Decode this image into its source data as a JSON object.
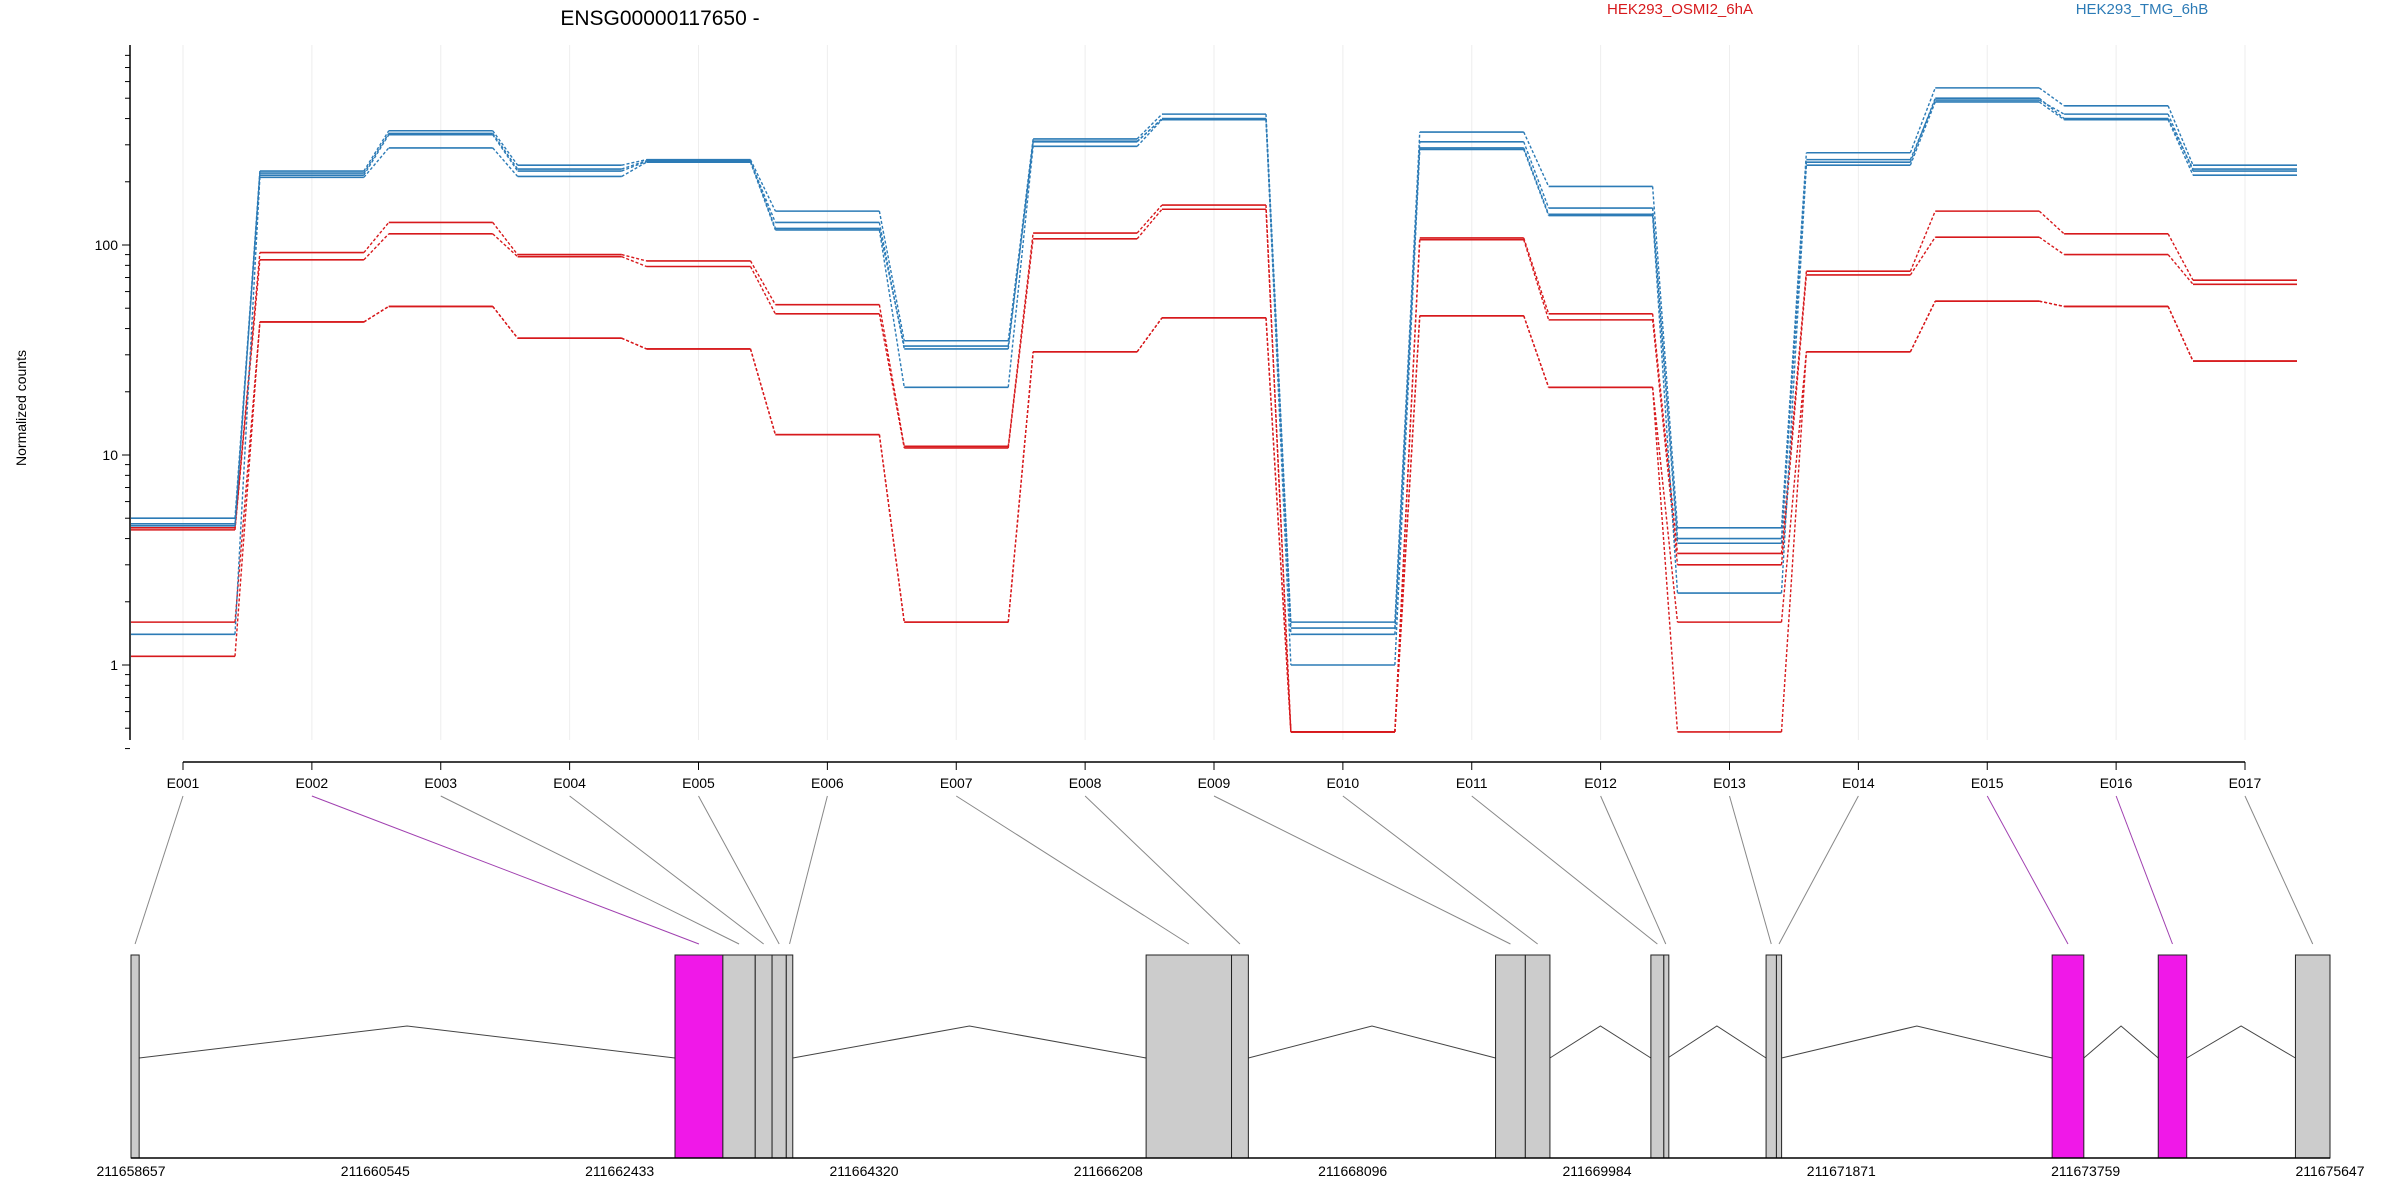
{
  "chart_data": {
    "type": "line",
    "title": "ENSG00000117650 -",
    "ylabel": "Normalized counts",
    "y_scale": "log10",
    "ylim": [
      0.4,
      850
    ],
    "y_ticks": [
      {
        "value": 1,
        "label": "1"
      },
      {
        "value": 10,
        "label": "10"
      },
      {
        "value": 100,
        "label": "100"
      }
    ],
    "categories": [
      "E001",
      "E002",
      "E003",
      "E004",
      "E005",
      "E006",
      "E007",
      "E008",
      "E009",
      "E010",
      "E011",
      "E012",
      "E013",
      "E014",
      "E015",
      "E016",
      "E017"
    ],
    "legend": [
      {
        "label": "HEK293_OSMI2_6hA",
        "color": "#d7191c"
      },
      {
        "label": "HEK293_TMG_6hB",
        "color": "#2c7bb6"
      }
    ],
    "series": [
      {
        "group": "HEK293_OSMI2_6hA",
        "color": "#d7191c",
        "values": [
          4.5,
          92,
          128,
          90,
          84,
          52,
          11,
          114,
          155,
          0.48,
          108,
          47,
          3.4,
          75,
          145,
          113,
          68
        ]
      },
      {
        "group": "HEK293_OSMI2_6hA",
        "color": "#d7191c",
        "values": [
          4.4,
          85,
          113,
          88,
          79,
          47,
          10.8,
          107,
          148,
          0.48,
          106,
          44,
          3.0,
          72,
          109,
          90,
          65
        ]
      },
      {
        "group": "HEK293_OSMI2_6hA",
        "color": "#d7191c",
        "values": [
          1.6,
          43,
          51,
          36,
          32,
          12.5,
          1.6,
          31,
          45,
          0.48,
          46,
          21,
          1.6,
          31,
          54,
          51,
          28
        ]
      },
      {
        "group": "HEK293_OSMI2_6hA",
        "color": "#d7191c",
        "values": [
          1.1,
          43,
          51,
          36,
          32,
          12.5,
          1.6,
          31,
          45,
          0.48,
          46,
          21,
          0.48,
          31,
          54,
          51,
          28
        ]
      },
      {
        "group": "HEK293_TMG_6hB",
        "color": "#2c7bb6",
        "values": [
          5.0,
          225,
          350,
          240,
          255,
          145,
          35,
          320,
          420,
          1.6,
          345,
          190,
          4.5,
          275,
          560,
          460,
          240
        ]
      },
      {
        "group": "HEK293_TMG_6hB",
        "color": "#2c7bb6",
        "values": [
          4.7,
          215,
          335,
          225,
          250,
          128,
          32,
          310,
          400,
          1.5,
          310,
          150,
          4.0,
          255,
          490,
          420,
          225
        ]
      },
      {
        "group": "HEK293_TMG_6hB",
        "color": "#2c7bb6",
        "values": [
          1.4,
          210,
          290,
          212,
          248,
          118,
          21,
          295,
          395,
          1.4,
          285,
          138,
          2.2,
          240,
          480,
          395,
          215
        ]
      },
      {
        "group": "HEK293_TMG_6hB",
        "color": "#2c7bb6",
        "values": [
          4.6,
          220,
          340,
          230,
          252,
          120,
          33,
          312,
          398,
          1.0,
          290,
          140,
          3.8,
          248,
          500,
          400,
          230
        ]
      }
    ],
    "gene_model": {
      "coordinate_labels": [
        "211658657",
        "211660545",
        "211662433",
        "211664320",
        "211666208",
        "211668096",
        "211669984",
        "211671871",
        "211673759",
        "211675647"
      ],
      "coord_start": 211658657,
      "coord_end": 211675647,
      "exons": [
        {
          "id": "E001",
          "start": 211658657,
          "end": 211658720,
          "highlighted": false
        },
        {
          "id": "E002",
          "start": 211662860,
          "end": 211663230,
          "highlighted": true
        },
        {
          "id": "E003",
          "start": 211663230,
          "end": 211663480,
          "highlighted": false
        },
        {
          "id": "E004",
          "start": 211663480,
          "end": 211663610,
          "highlighted": false
        },
        {
          "id": "E005",
          "start": 211663610,
          "end": 211663720,
          "highlighted": false
        },
        {
          "id": "E006",
          "start": 211663720,
          "end": 211663770,
          "highlighted": false
        },
        {
          "id": "E007",
          "start": 211666500,
          "end": 211667160,
          "highlighted": false
        },
        {
          "id": "E008",
          "start": 211667160,
          "end": 211667290,
          "highlighted": false
        },
        {
          "id": "E009",
          "start": 211669200,
          "end": 211669430,
          "highlighted": false
        },
        {
          "id": "E010",
          "start": 211669430,
          "end": 211669620,
          "highlighted": false
        },
        {
          "id": "E011",
          "start": 211670400,
          "end": 211670500,
          "highlighted": false
        },
        {
          "id": "E012",
          "start": 211670500,
          "end": 211670530,
          "highlighted": false
        },
        {
          "id": "E013",
          "start": 211671290,
          "end": 211671370,
          "highlighted": false
        },
        {
          "id": "E014",
          "start": 211671370,
          "end": 211671410,
          "highlighted": false
        },
        {
          "id": "E015",
          "start": 211673500,
          "end": 211673745,
          "highlighted": true
        },
        {
          "id": "E016",
          "start": 211674320,
          "end": 211674540,
          "highlighted": true
        },
        {
          "id": "E017",
          "start": 211675380,
          "end": 211675647,
          "highlighted": false
        }
      ],
      "introns": [
        [
          211658720,
          211662860
        ],
        [
          211663770,
          211666500
        ],
        [
          211667290,
          211669200
        ],
        [
          211669620,
          211670400
        ],
        [
          211670530,
          211671290
        ],
        [
          211671410,
          211673500
        ],
        [
          211673745,
          211674320
        ],
        [
          211674540,
          211675380
        ]
      ],
      "highlight_color": "#f018e8",
      "exon_color": "#cccccc"
    }
  }
}
